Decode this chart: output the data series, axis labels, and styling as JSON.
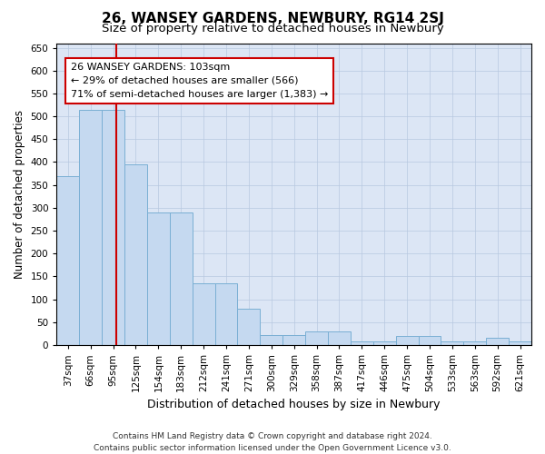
{
  "title": "26, WANSEY GARDENS, NEWBURY, RG14 2SJ",
  "subtitle": "Size of property relative to detached houses in Newbury",
  "xlabel": "Distribution of detached houses by size in Newbury",
  "ylabel": "Number of detached properties",
  "categories": [
    "37sqm",
    "66sqm",
    "95sqm",
    "125sqm",
    "154sqm",
    "183sqm",
    "212sqm",
    "241sqm",
    "271sqm",
    "300sqm",
    "329sqm",
    "358sqm",
    "387sqm",
    "417sqm",
    "446sqm",
    "475sqm",
    "504sqm",
    "533sqm",
    "563sqm",
    "592sqm",
    "621sqm"
  ],
  "values": [
    370,
    515,
    515,
    395,
    290,
    290,
    135,
    135,
    80,
    22,
    22,
    30,
    30,
    8,
    8,
    20,
    20,
    8,
    8,
    15,
    8
  ],
  "bar_color": "#c5d9f0",
  "bar_edge_color": "#7aafd4",
  "vline_x_index": 2.15,
  "vline_color": "#cc0000",
  "annotation_text": "26 WANSEY GARDENS: 103sqm\n← 29% of detached houses are smaller (566)\n71% of semi-detached houses are larger (1,383) →",
  "annotation_box_facecolor": "#ffffff",
  "annotation_box_edgecolor": "#cc0000",
  "background_color": "#dce6f5",
  "footer_text": "Contains HM Land Registry data © Crown copyright and database right 2024.\nContains public sector information licensed under the Open Government Licence v3.0.",
  "ylim": [
    0,
    660
  ],
  "yticks": [
    0,
    50,
    100,
    150,
    200,
    250,
    300,
    350,
    400,
    450,
    500,
    550,
    600,
    650
  ],
  "title_fontsize": 11,
  "subtitle_fontsize": 9.5,
  "xlabel_fontsize": 9,
  "ylabel_fontsize": 8.5,
  "tick_fontsize": 7.5,
  "annotation_fontsize": 8,
  "footer_fontsize": 6.5
}
